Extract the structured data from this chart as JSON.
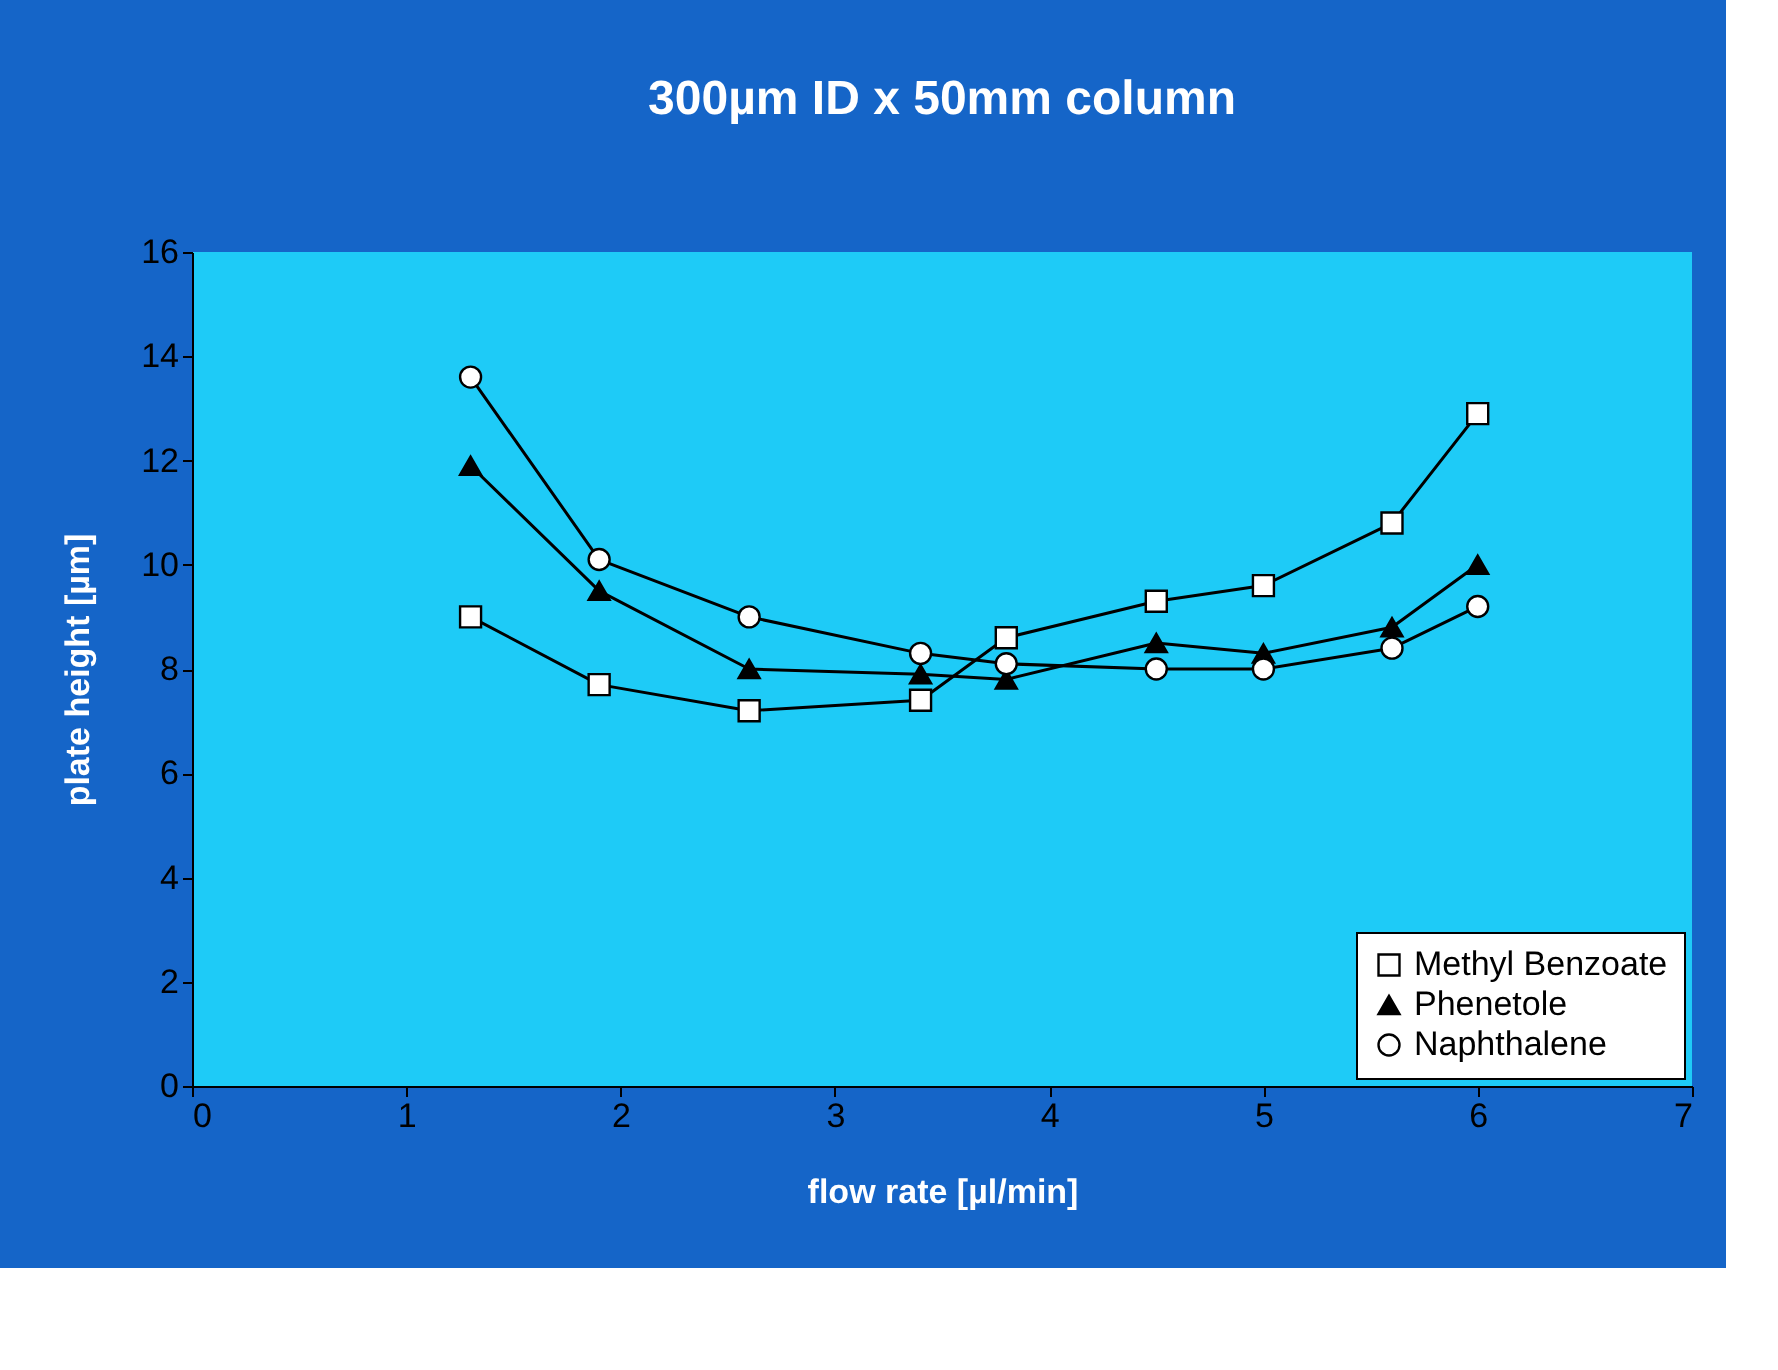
{
  "chart_data": {
    "type": "line",
    "title": "300µm ID x 50mm column",
    "xlabel": "flow rate [µl/min]",
    "ylabel": "plate height [µm]",
    "x": [
      1.3,
      1.9,
      2.6,
      3.4,
      3.8,
      4.5,
      5,
      5.6,
      6
    ],
    "series": [
      {
        "name": "Methyl Benzoate",
        "color": "#000000",
        "marker": "square",
        "values": [
          9.0,
          7.7,
          7.2,
          7.4,
          8.6,
          9.3,
          9.6,
          10.8,
          12.9
        ]
      },
      {
        "name": "Phenetole",
        "color": "#000000",
        "marker": "triangle",
        "values": [
          11.9,
          9.5,
          8.0,
          7.9,
          7.8,
          8.5,
          8.3,
          8.8,
          10.0
        ]
      },
      {
        "name": "Naphthalene",
        "color": "#000000",
        "marker": "circle",
        "values": [
          13.6,
          10.1,
          9.0,
          8.3,
          8.1,
          8.0,
          8.0,
          8.4,
          9.2
        ]
      }
    ],
    "xlim": [
      0,
      7
    ],
    "xticks": [
      0,
      1,
      2,
      3,
      4,
      5,
      6,
      7
    ],
    "ylim": [
      0,
      16
    ],
    "yticks": [
      0,
      2,
      4,
      6,
      8,
      10,
      12,
      14,
      16
    ],
    "grid": false,
    "legend": "bottom right",
    "line_style": "solid"
  }
}
